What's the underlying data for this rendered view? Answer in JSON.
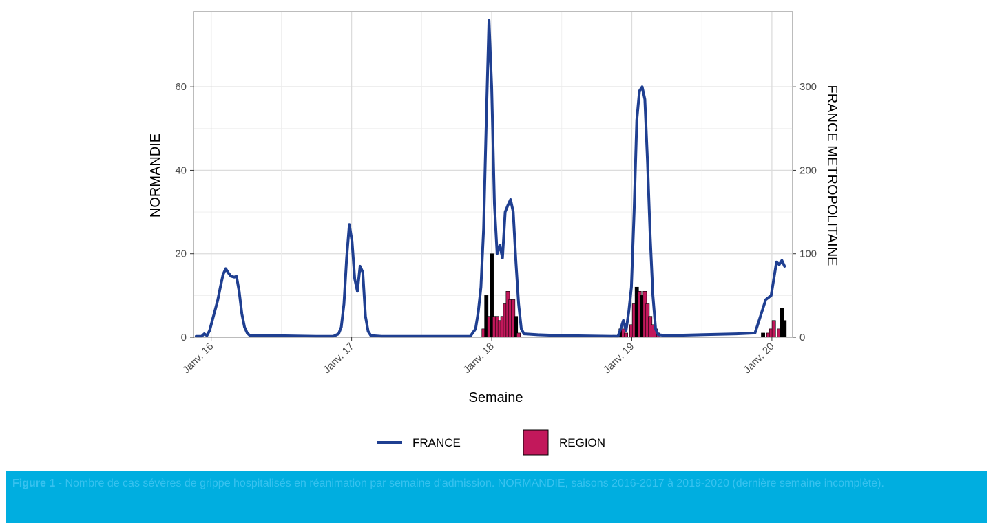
{
  "caption": {
    "figure_label": "Figure 1 -",
    "text": " Nombre de cas sévères de grippe hospitalisés en réanimation par semaine d'admission. NORMANDIE, saisons 2016-2017 à 2019-2020 (dernière semaine incomplète)."
  },
  "chart_data": {
    "type": "bar+line",
    "xlabel": "Semaine",
    "ylabel_left": "NORMANDIE",
    "ylabel_right": "FRANCE METROPOLITAINE",
    "ylim_left": [
      0,
      78
    ],
    "ylim_right": [
      0,
      390
    ],
    "xlim": [
      "2015-11-16",
      "2020-02-24"
    ],
    "yticks_left": [
      0,
      20,
      40,
      60
    ],
    "yticks_right": [
      0,
      100,
      200,
      300
    ],
    "xticks": [
      {
        "date": "2016-01-01",
        "label": "Janv. 16"
      },
      {
        "date": "2017-01-01",
        "label": "Janv. 17"
      },
      {
        "date": "2018-01-01",
        "label": "Janv. 18"
      },
      {
        "date": "2019-01-01",
        "label": "Janv. 19"
      },
      {
        "date": "2020-01-01",
        "label": "Janv. 20"
      }
    ],
    "grid": true,
    "legend_position": "bottom",
    "colors": {
      "france": "#1f3f91",
      "region": "#c2185b",
      "region_dark": "#000000"
    },
    "legend": [
      {
        "key": "france",
        "label": "FRANCE"
      },
      {
        "key": "region",
        "label": "REGION"
      }
    ],
    "series": [
      {
        "name": "FRANCE",
        "axis": "right",
        "kind": "line",
        "points": [
          [
            "2015-11-23",
            1
          ],
          [
            "2015-12-07",
            1
          ],
          [
            "2015-12-14",
            4
          ],
          [
            "2015-12-21",
            2
          ],
          [
            "2015-12-28",
            8
          ],
          [
            "2016-01-04",
            20
          ],
          [
            "2016-01-11",
            32
          ],
          [
            "2016-01-18",
            44
          ],
          [
            "2016-01-25",
            60
          ],
          [
            "2016-02-01",
            75
          ],
          [
            "2016-02-08",
            82
          ],
          [
            "2016-02-15",
            77
          ],
          [
            "2016-02-22",
            73
          ],
          [
            "2016-03-01",
            72
          ],
          [
            "2016-03-07",
            73
          ],
          [
            "2016-03-14",
            55
          ],
          [
            "2016-03-21",
            28
          ],
          [
            "2016-03-28",
            12
          ],
          [
            "2016-04-04",
            5
          ],
          [
            "2016-04-11",
            2
          ],
          [
            "2016-04-25",
            2
          ],
          [
            "2016-06-01",
            2
          ],
          [
            "2016-10-01",
            1
          ],
          [
            "2016-11-14",
            1
          ],
          [
            "2016-11-28",
            4
          ],
          [
            "2016-12-05",
            12
          ],
          [
            "2016-12-12",
            40
          ],
          [
            "2016-12-19",
            95
          ],
          [
            "2016-12-26",
            135
          ],
          [
            "2017-01-02",
            115
          ],
          [
            "2017-01-09",
            70
          ],
          [
            "2017-01-16",
            55
          ],
          [
            "2017-01-23",
            85
          ],
          [
            "2017-01-30",
            78
          ],
          [
            "2017-02-06",
            25
          ],
          [
            "2017-02-13",
            7
          ],
          [
            "2017-02-20",
            2
          ],
          [
            "2017-03-20",
            1
          ],
          [
            "2017-10-01",
            1
          ],
          [
            "2017-11-06",
            1
          ],
          [
            "2017-11-20",
            10
          ],
          [
            "2017-11-27",
            30
          ],
          [
            "2017-12-04",
            60
          ],
          [
            "2017-12-11",
            130
          ],
          [
            "2017-12-18",
            260
          ],
          [
            "2017-12-25",
            380
          ],
          [
            "2018-01-01",
            300
          ],
          [
            "2018-01-08",
            160
          ],
          [
            "2018-01-15",
            100
          ],
          [
            "2018-01-22",
            110
          ],
          [
            "2018-01-29",
            95
          ],
          [
            "2018-02-05",
            150
          ],
          [
            "2018-02-12",
            158
          ],
          [
            "2018-02-19",
            165
          ],
          [
            "2018-02-26",
            150
          ],
          [
            "2018-03-05",
            90
          ],
          [
            "2018-03-12",
            40
          ],
          [
            "2018-03-19",
            10
          ],
          [
            "2018-03-26",
            4
          ],
          [
            "2018-05-01",
            3
          ],
          [
            "2018-07-01",
            2
          ],
          [
            "2018-11-26",
            1
          ],
          [
            "2018-12-03",
            10
          ],
          [
            "2018-12-10",
            20
          ],
          [
            "2018-12-17",
            8
          ],
          [
            "2018-12-24",
            30
          ],
          [
            "2018-12-31",
            60
          ],
          [
            "2019-01-07",
            150
          ],
          [
            "2019-01-14",
            260
          ],
          [
            "2019-01-21",
            295
          ],
          [
            "2019-01-28",
            300
          ],
          [
            "2019-02-04",
            285
          ],
          [
            "2019-02-11",
            210
          ],
          [
            "2019-02-18",
            120
          ],
          [
            "2019-02-25",
            50
          ],
          [
            "2019-03-04",
            10
          ],
          [
            "2019-03-11",
            3
          ],
          [
            "2019-04-01",
            2
          ],
          [
            "2019-10-01",
            4
          ],
          [
            "2019-11-18",
            5
          ],
          [
            "2019-12-02",
            25
          ],
          [
            "2019-12-16",
            45
          ],
          [
            "2019-12-30",
            50
          ],
          [
            "2020-01-13",
            90
          ],
          [
            "2020-01-20",
            87
          ],
          [
            "2020-01-27",
            92
          ],
          [
            "2020-02-03",
            85
          ]
        ]
      },
      {
        "name": "REGION",
        "axis": "left",
        "kind": "bar",
        "points": [
          [
            "2017-12-11",
            2,
            "region"
          ],
          [
            "2017-12-18",
            10,
            "region_dark"
          ],
          [
            "2017-12-25",
            5,
            "region"
          ],
          [
            "2018-01-01",
            20,
            "region_dark"
          ],
          [
            "2018-01-08",
            5,
            "region"
          ],
          [
            "2018-01-15",
            5,
            "region"
          ],
          [
            "2018-01-22",
            4,
            "region"
          ],
          [
            "2018-01-29",
            5,
            "region"
          ],
          [
            "2018-02-05",
            8,
            "region"
          ],
          [
            "2018-02-12",
            11,
            "region"
          ],
          [
            "2018-02-19",
            9,
            "region"
          ],
          [
            "2018-02-26",
            9,
            "region"
          ],
          [
            "2018-03-05",
            5,
            "region_dark"
          ],
          [
            "2018-03-12",
            1,
            "region"
          ],
          [
            "2018-12-03",
            2,
            "region_dark"
          ],
          [
            "2018-12-10",
            2,
            "region"
          ],
          [
            "2018-12-17",
            1,
            "region"
          ],
          [
            "2018-12-31",
            3,
            "region"
          ],
          [
            "2019-01-07",
            8,
            "region"
          ],
          [
            "2019-01-14",
            12,
            "region_dark"
          ],
          [
            "2019-01-21",
            11,
            "region"
          ],
          [
            "2019-01-28",
            10,
            "region_dark"
          ],
          [
            "2019-02-04",
            11,
            "region"
          ],
          [
            "2019-02-11",
            8,
            "region"
          ],
          [
            "2019-02-18",
            5,
            "region"
          ],
          [
            "2019-02-25",
            3,
            "region"
          ],
          [
            "2019-03-04",
            2,
            "region"
          ],
          [
            "2019-03-11",
            1,
            "region"
          ],
          [
            "2019-12-09",
            1,
            "region_dark"
          ],
          [
            "2019-12-23",
            1,
            "region"
          ],
          [
            "2019-12-30",
            2,
            "region"
          ],
          [
            "2020-01-06",
            4,
            "region"
          ],
          [
            "2020-01-20",
            2,
            "region"
          ],
          [
            "2020-01-27",
            7,
            "region_dark"
          ],
          [
            "2020-02-03",
            4,
            "region_dark"
          ]
        ]
      }
    ]
  }
}
